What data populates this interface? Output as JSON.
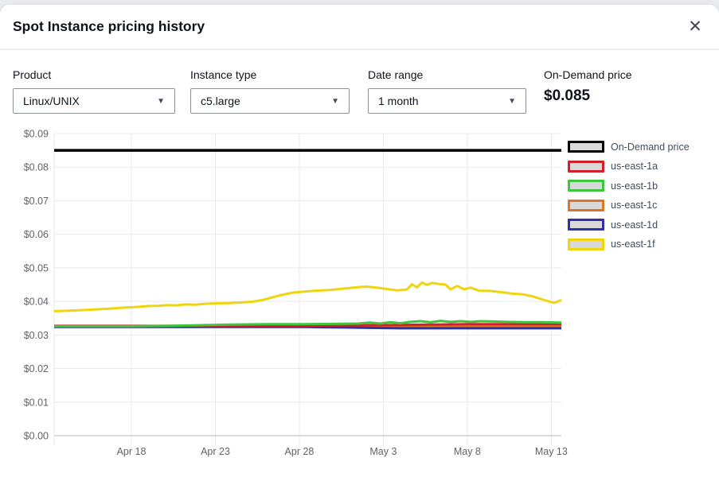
{
  "dialog": {
    "title": "Spot Instance pricing history"
  },
  "icons": {
    "close": "✕",
    "caret_down": "▼"
  },
  "filters": {
    "product": {
      "label": "Product",
      "value": "Linux/UNIX"
    },
    "instance_type": {
      "label": "Instance type",
      "value": "c5.large"
    },
    "date_range": {
      "label": "Date range",
      "value": "1 month"
    },
    "on_demand": {
      "label": "On-Demand price",
      "value": "$0.085"
    }
  },
  "chart_data": {
    "type": "line",
    "title": "",
    "xlabel": "",
    "ylabel": "",
    "grid": true,
    "legend_position": "right",
    "x_unit": "days (Apr 18 = 5, May 13 = 30)",
    "x_range": [
      0.4,
      30.6
    ],
    "y_range": [
      0,
      0.09
    ],
    "y_ticks": [
      {
        "v": 0.0,
        "label": "$0.00"
      },
      {
        "v": 0.01,
        "label": "$0.01"
      },
      {
        "v": 0.02,
        "label": "$0.02"
      },
      {
        "v": 0.03,
        "label": "$0.03"
      },
      {
        "v": 0.04,
        "label": "$0.04"
      },
      {
        "v": 0.05,
        "label": "$0.05"
      },
      {
        "v": 0.06,
        "label": "$0.06"
      },
      {
        "v": 0.07,
        "label": "$0.07"
      },
      {
        "v": 0.08,
        "label": "$0.08"
      },
      {
        "v": 0.09,
        "label": "$0.09"
      }
    ],
    "x_ticks": [
      {
        "x": 5,
        "label": "Apr 18"
      },
      {
        "x": 10,
        "label": "Apr 23"
      },
      {
        "x": 15,
        "label": "Apr 28"
      },
      {
        "x": 20,
        "label": "May 3"
      },
      {
        "x": 25,
        "label": "May 8"
      },
      {
        "x": 30,
        "label": "May 13"
      }
    ],
    "draw_order": [
      "us-east-1c",
      "us-east-1d",
      "us-east-1a",
      "us-east-1b",
      "us-east-1f",
      "On-Demand price"
    ],
    "series": [
      {
        "name": "On-Demand price",
        "color": "#000000",
        "width": 3.5,
        "points": [
          [
            0.4,
            0.085
          ],
          [
            30.6,
            0.085
          ]
        ]
      },
      {
        "name": "us-east-1a",
        "color": "#d2202a",
        "width": 3,
        "points": [
          [
            0.4,
            0.0327
          ],
          [
            15,
            0.0327
          ],
          [
            17,
            0.0328
          ],
          [
            19,
            0.0329
          ],
          [
            21,
            0.033
          ],
          [
            23,
            0.0331
          ],
          [
            25,
            0.0332
          ],
          [
            30.6,
            0.0332
          ]
        ]
      },
      {
        "name": "us-east-1b",
        "color": "#3ec73e",
        "width": 3,
        "points": [
          [
            0.4,
            0.0326
          ],
          [
            5,
            0.0326
          ],
          [
            7,
            0.0327
          ],
          [
            9,
            0.0329
          ],
          [
            11,
            0.0331
          ],
          [
            13,
            0.0332
          ],
          [
            15,
            0.0332
          ],
          [
            17,
            0.0333
          ],
          [
            18.5,
            0.0334
          ],
          [
            19.2,
            0.0337
          ],
          [
            19.8,
            0.0334
          ],
          [
            20.4,
            0.0338
          ],
          [
            21,
            0.0335
          ],
          [
            21.6,
            0.0339
          ],
          [
            22.2,
            0.0341
          ],
          [
            22.8,
            0.0338
          ],
          [
            23.4,
            0.0342
          ],
          [
            24,
            0.0339
          ],
          [
            24.6,
            0.0341
          ],
          [
            25.2,
            0.0339
          ],
          [
            25.8,
            0.0341
          ],
          [
            26.6,
            0.034
          ],
          [
            27.4,
            0.0339
          ],
          [
            28.4,
            0.0338
          ],
          [
            29.4,
            0.0338
          ],
          [
            30.6,
            0.0337
          ]
        ]
      },
      {
        "name": "us-east-1c",
        "color": "#dc7525",
        "width": 3,
        "points": [
          [
            0.4,
            0.0325
          ],
          [
            20,
            0.0325
          ],
          [
            25,
            0.0326
          ],
          [
            30.6,
            0.0326
          ]
        ]
      },
      {
        "name": "us-east-1d",
        "color": "#2f31a5",
        "width": 3,
        "points": [
          [
            0.4,
            0.0324
          ],
          [
            15,
            0.0324
          ],
          [
            16.5,
            0.0323
          ],
          [
            18,
            0.0322
          ],
          [
            19.5,
            0.0321
          ],
          [
            21,
            0.032
          ],
          [
            30.6,
            0.032
          ]
        ]
      },
      {
        "name": "us-east-1f",
        "color": "#efd510",
        "width": 3,
        "points": [
          [
            0.4,
            0.0371
          ],
          [
            1.2,
            0.0372
          ],
          [
            2,
            0.0374
          ],
          [
            2.8,
            0.0376
          ],
          [
            3.6,
            0.0378
          ],
          [
            4.4,
            0.0381
          ],
          [
            5.2,
            0.0383
          ],
          [
            6,
            0.0386
          ],
          [
            6.6,
            0.0387
          ],
          [
            7.2,
            0.0389
          ],
          [
            7.6,
            0.0388
          ],
          [
            8.2,
            0.0391
          ],
          [
            8.8,
            0.039
          ],
          [
            9.4,
            0.0393
          ],
          [
            10,
            0.0394
          ],
          [
            10.8,
            0.0395
          ],
          [
            11.6,
            0.0397
          ],
          [
            12.2,
            0.0399
          ],
          [
            12.8,
            0.0404
          ],
          [
            13.4,
            0.0412
          ],
          [
            14,
            0.042
          ],
          [
            14.6,
            0.0426
          ],
          [
            15.2,
            0.0429
          ],
          [
            16,
            0.0432
          ],
          [
            16.8,
            0.0434
          ],
          [
            17.6,
            0.0438
          ],
          [
            18.4,
            0.0442
          ],
          [
            19,
            0.0444
          ],
          [
            19.6,
            0.0441
          ],
          [
            20.2,
            0.0437
          ],
          [
            20.8,
            0.0433
          ],
          [
            21.4,
            0.0435
          ],
          [
            21.7,
            0.0451
          ],
          [
            22,
            0.0442
          ],
          [
            22.3,
            0.0456
          ],
          [
            22.6,
            0.0449
          ],
          [
            22.9,
            0.0455
          ],
          [
            23.3,
            0.0452
          ],
          [
            23.7,
            0.045
          ],
          [
            24,
            0.0436
          ],
          [
            24.4,
            0.0446
          ],
          [
            24.8,
            0.0436
          ],
          [
            25.2,
            0.0441
          ],
          [
            25.7,
            0.0432
          ],
          [
            26.4,
            0.0431
          ],
          [
            27.1,
            0.0427
          ],
          [
            27.7,
            0.0423
          ],
          [
            28.3,
            0.0421
          ],
          [
            28.9,
            0.0415
          ],
          [
            29.4,
            0.0407
          ],
          [
            29.9,
            0.0399
          ],
          [
            30.2,
            0.0396
          ],
          [
            30.6,
            0.0404
          ]
        ]
      }
    ]
  }
}
